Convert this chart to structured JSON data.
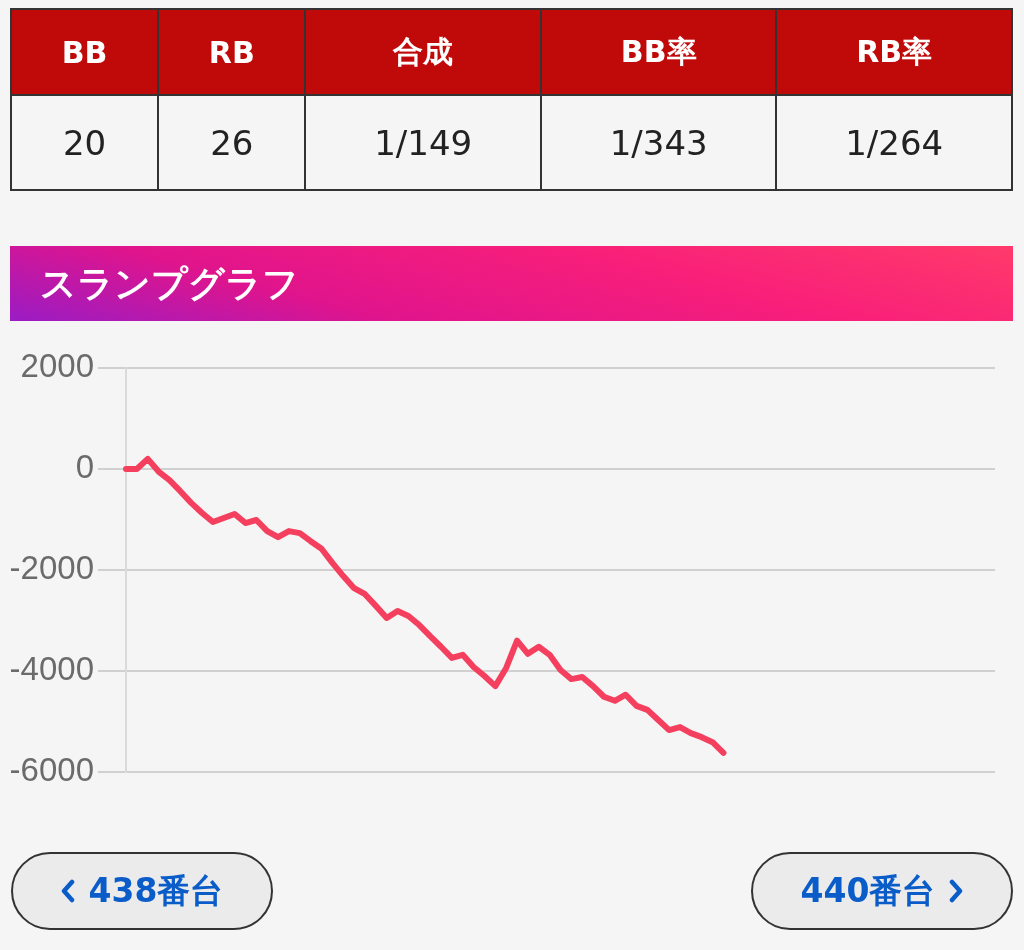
{
  "chart_data": [
    {
      "type": "other",
      "categories": [
        "BB",
        "RB",
        "合成",
        "BB率",
        "RB率"
      ],
      "annotations": [
        "20",
        "26",
        "1/149",
        "1/343",
        "1/264"
      ]
    },
    {
      "type": "line",
      "title": "スランプグラフ",
      "categories": [
        null,
        null,
        null,
        null,
        null,
        null,
        null,
        null,
        null,
        null,
        null,
        null,
        null,
        null,
        null,
        null,
        null,
        null,
        null,
        null,
        null,
        null,
        null,
        null,
        null,
        null,
        null,
        null,
        null,
        null,
        null,
        null,
        null,
        null,
        null,
        null,
        null,
        null,
        null,
        null,
        null,
        null,
        null,
        null,
        null,
        null,
        null,
        null,
        null,
        null,
        null,
        null,
        null,
        null,
        null,
        null,
        null,
        null,
        null,
        null,
        null,
        null,
        null,
        null,
        null,
        null,
        null,
        null,
        null,
        null,
        null,
        null,
        null,
        null,
        null,
        null,
        null,
        null,
        null,
        null,
        null
      ],
      "series": [
        {
          "color": "#f4405e",
          "values": [
            0,
            0,
            200,
            -50,
            -220,
            -440,
            -670,
            -870,
            -1050,
            -970,
            -890,
            -1070,
            -1010,
            -1230,
            -1350,
            -1230,
            -1270,
            -1430,
            -1580,
            -1860,
            -2120,
            -2360,
            -2480,
            -2710,
            -2950,
            -2810,
            -2910,
            -3090,
            -3310,
            -3520,
            -3740,
            -3680,
            -3920,
            -4100,
            -4300,
            -3940,
            -3400,
            -3660,
            -3520,
            -3680,
            -3980,
            -4160,
            -4120,
            -4300,
            -4510,
            -4590,
            -4470,
            -4690,
            -4770,
            -4970,
            -5170,
            -5110,
            -5230,
            -5310,
            -5410,
            -5620,
            null,
            null,
            null,
            null,
            null,
            null,
            null,
            null,
            null,
            null,
            null,
            null,
            null,
            null,
            null,
            null,
            null,
            null,
            null,
            null,
            null,
            null,
            null,
            null,
            null
          ]
        }
      ],
      "ylim": [
        -6000,
        2000
      ],
      "yticks": [
        -6000,
        -4000,
        -2000,
        0,
        2000
      ],
      "grid": "y",
      "tick_labels": "y",
      "annotations": [
        "438番台",
        "440番台"
      ]
    }
  ]
}
